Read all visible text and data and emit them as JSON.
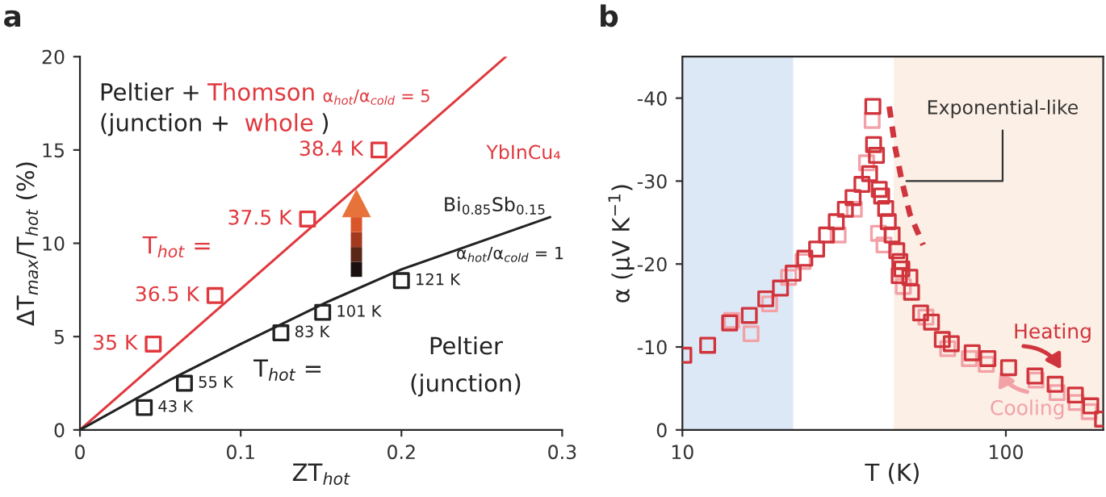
{
  "chart_data": [
    {
      "type": "scatter",
      "title": "a",
      "xlabel": "ZT$_{hot}$",
      "ylabel": "ΔT$_{max}$/T$_{hot}$ (%)",
      "xlim": [
        0,
        0.3
      ],
      "ylim": [
        0,
        20
      ],
      "xticks": [
        0,
        0.1,
        0.2,
        0.3
      ],
      "yticks": [
        0,
        5,
        10,
        15,
        20
      ],
      "grid": false,
      "annotations": [
        "Peltier +",
        "Thomson",
        "α$_{hot}$/α$_{cold}$ = 5",
        "(junction + ",
        "whole",
        ")",
        "T$_{hot}$ =",
        "α$_{hot}$/α$_{cold}$ = 1",
        "T$_{hot}$ =",
        "Peltier",
        "(junction)",
        {
          "text": "35 K",
          "x": 0.0456,
          "y": 4.6
        },
        {
          "text": "36.5 K",
          "x": 0.084,
          "y": 7.2
        },
        {
          "text": "37.5 K",
          "x": 0.1416,
          "y": 11.3
        },
        {
          "text": "38.4 K",
          "x": 0.186,
          "y": 15.0
        },
        {
          "text": "43 K",
          "x": 0.04,
          "y": 1.2
        },
        {
          "text": "55 K",
          "x": 0.065,
          "y": 2.5
        },
        {
          "text": "83 K",
          "x": 0.125,
          "y": 5.2
        },
        {
          "text": "101 K",
          "x": 0.151,
          "y": 6.3
        },
        {
          "text": "121 K",
          "x": 0.2,
          "y": 8.0
        }
      ],
      "series": [
        {
          "type": "line",
          "name": "YbInCu₄",
          "color": "#e0393e",
          "marker": "none",
          "line_style": "solid",
          "x": [
            0,
            0.265
          ],
          "values": [
            0,
            20
          ]
        },
        {
          "color": "#e0393e",
          "marker": "square",
          "x": [
            0.0456,
            0.084,
            0.1416,
            0.186
          ],
          "values": [
            4.6,
            7.2,
            11.3,
            15.0
          ]
        },
        {
          "type": "line",
          "name": "Bi$_{0.85}$Sb$_{0.15}$",
          "color": "#222222",
          "marker": "none",
          "line_style": "solid",
          "x": [
            0,
            0.0564,
            0.1,
            0.155,
            0.2,
            0.2925
          ],
          "values": [
            0,
            2.7,
            4.6,
            6.9,
            8.6,
            11.4
          ]
        },
        {
          "color": "#222222",
          "marker": "square",
          "x": [
            0.04,
            0.065,
            0.125,
            0.151,
            0.2
          ],
          "values": [
            1.2,
            2.5,
            5.2,
            6.3,
            8.0
          ]
        }
      ]
    },
    {
      "type": "scatter",
      "title": "b",
      "xlabel": "T (K)",
      "ylabel": "α (μV K$^{−1}$)",
      "log": "x",
      "xlim": [
        10,
        200
      ],
      "ylim": [
        0,
        -45
      ],
      "xticks": [
        10,
        100
      ],
      "yticks": [
        0,
        -10,
        -20,
        -30,
        -40
      ],
      "grid": false,
      "bands": [
        {
          "axis": "x",
          "from": 10,
          "to": 22,
          "color": "#dce8f6"
        },
        {
          "axis": "x",
          "from": 45,
          "to": 200,
          "color": "#fcefe5"
        }
      ],
      "annotations": [
        {
          "text": "Exponential-like",
          "x": 47.7,
          "y": -30
        }
      ],
      "series": [
        {
          "name": "Cooling",
          "color": "#f2a1a7",
          "marker": "square",
          "x": [
            14.2,
            16.3,
            18.6,
            21.3,
            23.6,
            30.3,
            34,
            37.1,
            38.6,
            40.4,
            42,
            48.2,
            56.6,
            66.1,
            77.1,
            87,
            124,
            144,
            165,
            181
          ],
          "values": [
            -13.2,
            -11.6,
            -15.2,
            -18.4,
            -20.3,
            -23.5,
            -26.6,
            -32.2,
            -37.3,
            -23.7,
            -22.3,
            -17.3,
            -13.6,
            -9.8,
            -8.6,
            -7.9,
            -6.0,
            -4.5,
            -3.3,
            -2.2
          ]
        },
        {
          "name": "Heating",
          "color": "#d0343c",
          "marker": "square",
          "x": [
            10.1,
            11.97,
            14.0,
            16.1,
            18.1,
            20.1,
            22.0,
            23.9,
            26.0,
            27.9,
            29.9,
            31.9,
            33.7,
            35.9,
            37.9,
            38.8,
            39.0,
            39.8,
            40.6,
            41.3,
            42.5,
            43.3,
            44.5,
            46.0,
            47.0,
            47.7,
            46.8,
            50.5,
            51.1,
            54.5,
            58.9,
            63.6,
            67.8,
            78.7,
            88.0,
            102,
            123,
            142,
            164,
            183,
            199
          ],
          "values": [
            -9.0,
            -10.2,
            -12.9,
            -13.8,
            -15.8,
            -17.1,
            -18.9,
            -20.7,
            -21.8,
            -23.5,
            -25.1,
            -26.6,
            -28.0,
            -29.6,
            -30.9,
            -39.0,
            -34.4,
            -33.1,
            -29.0,
            -28.2,
            -26.7,
            -25.1,
            -23.5,
            -21.6,
            -20.3,
            -19.4,
            -18.6,
            -18.4,
            -16.6,
            -14.1,
            -13.0,
            -10.9,
            -10.4,
            -9.3,
            -8.6,
            -7.5,
            -6.5,
            -5.5,
            -4.2,
            -2.9,
            -1.3
          ]
        },
        {
          "type": "line",
          "color": "#d0343c",
          "marker": "none",
          "line_style": "dashed",
          "x": [
            43.6,
            45.5,
            47.7,
            50.5,
            55.5
          ],
          "values": [
            -39,
            -34,
            -30,
            -26,
            -22.3
          ]
        }
      ]
    }
  ]
}
